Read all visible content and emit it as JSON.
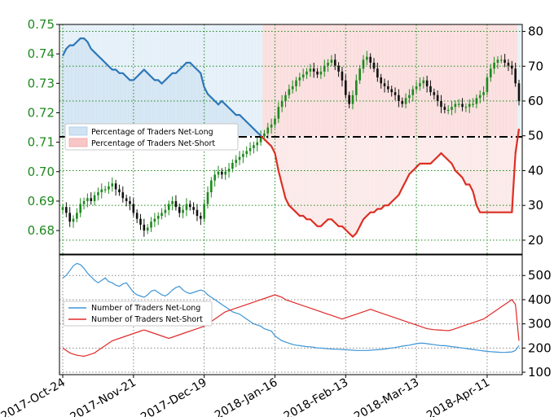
{
  "chart_data": [
    {
      "type": "line",
      "title": "",
      "left_axis": {
        "ticks": [
          0.68,
          0.69,
          0.7,
          0.71,
          0.72,
          0.73,
          0.74,
          0.75
        ],
        "ylim": [
          0.672,
          0.75
        ],
        "color": "#1e8a1e"
      },
      "right_axis": {
        "ticks": [
          20,
          30,
          40,
          50,
          60,
          70,
          80
        ],
        "ylim": [
          16,
          82
        ]
      },
      "x_tick_labels": [
        "2017-Oct-24",
        "2017-Nov-21",
        "2017-Dec-19",
        "2018-Jan-16",
        "2018-Feb-13",
        "2018-Mar-13",
        "2018-Apr-11"
      ],
      "x_tick_index": [
        0,
        20,
        40,
        60,
        80,
        100,
        120
      ],
      "n_points": 130,
      "neutral_line": 50,
      "legend": [
        {
          "name": "Percentage of Traders Net-Long",
          "color": "#a9cde8"
        },
        {
          "name": "Percentage of Traders Net-Short",
          "color": "#f2a3a3"
        }
      ],
      "price_close": [
        0.688,
        0.686,
        0.683,
        0.684,
        0.686,
        0.689,
        0.69,
        0.691,
        0.69,
        0.692,
        0.693,
        0.694,
        0.694,
        0.695,
        0.696,
        0.694,
        0.693,
        0.691,
        0.69,
        0.689,
        0.686,
        0.684,
        0.682,
        0.68,
        0.681,
        0.683,
        0.684,
        0.685,
        0.686,
        0.687,
        0.689,
        0.69,
        0.688,
        0.686,
        0.687,
        0.689,
        0.688,
        0.687,
        0.685,
        0.684,
        0.689,
        0.693,
        0.697,
        0.699,
        0.7,
        0.699,
        0.7,
        0.701,
        0.703,
        0.704,
        0.705,
        0.706,
        0.707,
        0.708,
        0.709,
        0.71,
        0.712,
        0.713,
        0.715,
        0.716,
        0.718,
        0.722,
        0.724,
        0.726,
        0.728,
        0.729,
        0.731,
        0.732,
        0.733,
        0.734,
        0.735,
        0.734,
        0.733,
        0.734,
        0.736,
        0.737,
        0.738,
        0.736,
        0.734,
        0.731,
        0.726,
        0.723,
        0.726,
        0.731,
        0.735,
        0.738,
        0.739,
        0.737,
        0.735,
        0.732,
        0.73,
        0.729,
        0.728,
        0.727,
        0.726,
        0.724,
        0.723,
        0.725,
        0.726,
        0.728,
        0.729,
        0.73,
        0.731,
        0.729,
        0.727,
        0.726,
        0.724,
        0.722,
        0.721,
        0.721,
        0.722,
        0.723,
        0.723,
        0.722,
        0.722,
        0.723,
        0.723,
        0.725,
        0.726,
        0.727,
        0.732,
        0.735,
        0.737,
        0.738,
        0.738,
        0.737,
        0.736,
        0.735,
        0.73,
        0.724
      ],
      "pct_net_long": [
        73,
        75,
        76,
        76,
        77,
        78,
        78,
        77,
        75,
        74,
        73,
        72,
        71,
        70,
        69,
        69,
        68,
        68,
        67,
        66,
        66,
        67,
        68,
        69,
        68,
        67,
        66,
        66,
        65,
        66,
        67,
        68,
        68,
        69,
        70,
        71,
        71,
        70,
        69,
        68,
        64,
        62,
        61,
        60,
        59,
        60,
        59,
        58,
        57,
        56,
        56,
        55,
        54,
        53,
        52,
        51,
        50,
        49,
        48,
        47,
        45,
        40,
        36,
        32,
        30,
        29,
        28,
        27,
        27,
        26,
        26,
        25,
        24,
        24,
        25,
        26,
        26,
        25,
        24,
        24,
        23,
        22,
        21,
        22,
        24,
        26,
        27,
        28,
        28,
        29,
        29,
        30,
        30,
        31,
        32,
        33,
        35,
        37,
        39,
        40,
        41,
        42,
        42,
        42,
        42,
        43,
        44,
        45,
        44,
        43,
        42,
        40,
        39,
        38,
        36,
        36,
        34,
        30,
        28,
        28,
        28,
        28,
        28,
        28,
        28,
        28,
        28,
        28,
        45,
        52
      ],
      "net_long_traders": [
        490,
        500,
        520,
        540,
        550,
        545,
        530,
        510,
        495,
        480,
        470,
        480,
        490,
        475,
        470,
        460,
        455,
        465,
        470,
        450,
        430,
        420,
        415,
        410,
        420,
        435,
        440,
        430,
        420,
        415,
        425,
        440,
        450,
        455,
        440,
        430,
        425,
        430,
        435,
        440,
        435,
        420,
        410,
        400,
        390,
        380,
        370,
        360,
        350,
        345,
        340,
        330,
        320,
        310,
        300,
        295,
        290,
        280,
        275,
        270,
        250,
        240,
        230,
        225,
        220,
        215,
        212,
        210,
        208,
        206,
        205,
        203,
        200,
        200,
        198,
        197,
        196,
        195,
        195,
        194,
        193,
        192,
        191,
        190,
        190,
        190,
        190,
        191,
        192,
        193,
        194,
        196,
        198,
        200,
        202,
        205,
        208,
        210,
        212,
        215,
        218,
        220,
        220,
        218,
        216,
        214,
        212,
        210,
        210,
        208,
        206,
        204,
        202,
        200,
        198,
        196,
        194,
        192,
        190,
        188,
        186,
        185,
        184,
        183,
        182,
        182,
        183,
        184,
        190,
        210
      ],
      "net_short_traders": [
        200,
        190,
        180,
        175,
        170,
        168,
        166,
        170,
        175,
        180,
        190,
        200,
        210,
        220,
        230,
        235,
        240,
        245,
        250,
        255,
        260,
        265,
        270,
        275,
        270,
        265,
        260,
        255,
        250,
        245,
        240,
        245,
        250,
        255,
        260,
        265,
        270,
        275,
        280,
        285,
        290,
        300,
        310,
        320,
        330,
        340,
        350,
        355,
        360,
        365,
        370,
        375,
        380,
        385,
        390,
        395,
        400,
        405,
        410,
        415,
        420,
        415,
        410,
        400,
        395,
        390,
        385,
        380,
        375,
        370,
        365,
        360,
        355,
        350,
        345,
        340,
        335,
        330,
        325,
        320,
        325,
        330,
        335,
        340,
        345,
        350,
        355,
        360,
        355,
        350,
        345,
        340,
        335,
        330,
        325,
        320,
        315,
        310,
        305,
        300,
        295,
        290,
        285,
        280,
        278,
        276,
        275,
        274,
        273,
        272,
        275,
        280,
        285,
        290,
        295,
        300,
        305,
        310,
        315,
        320,
        330,
        340,
        350,
        360,
        370,
        380,
        390,
        400,
        380,
        230
      ]
    },
    {
      "type": "line",
      "title": "",
      "right_axis": {
        "ticks": [
          100,
          200,
          300,
          400,
          500
        ],
        "ylim": [
          90,
          585
        ]
      },
      "legend": [
        {
          "name": "Number of Traders Net-Long",
          "color": "#3d95d6"
        },
        {
          "name": "Number of Traders Net-Short",
          "color": "#e02a2a"
        }
      ]
    }
  ]
}
